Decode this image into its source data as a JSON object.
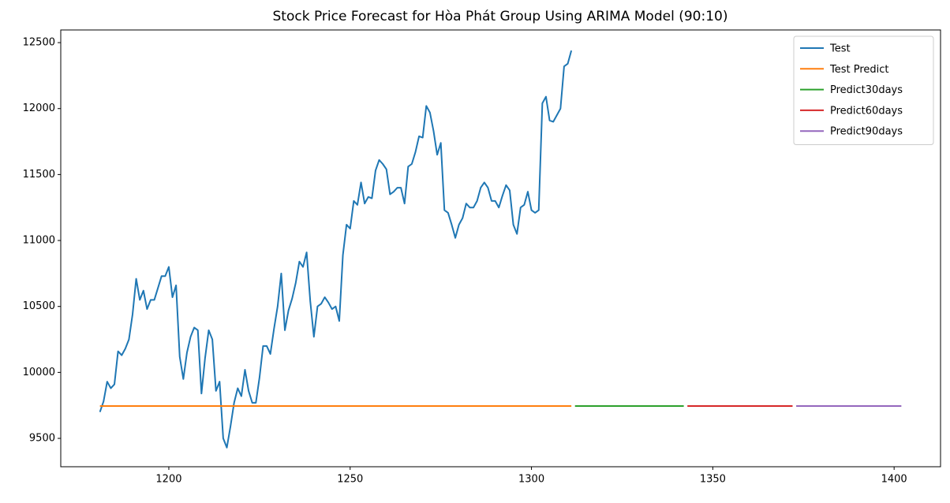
{
  "chart_data": {
    "type": "line",
    "title": "Stock Price Forecast for Hòa Phát Group Using ARIMA Model (90:10)",
    "xlim": [
      1170.2,
      1412.8
    ],
    "ylim": [
      9285,
      12596
    ],
    "xticks": [
      1200,
      1250,
      1300,
      1350,
      1400
    ],
    "yticks": [
      9500,
      10000,
      10500,
      11000,
      11500,
      12000,
      12500
    ],
    "grid": false,
    "legend": "upper right",
    "series": [
      {
        "name": "Test",
        "color": "#1f77b4",
        "x": [
          1181,
          1182,
          1183,
          1184,
          1185,
          1186,
          1187,
          1188,
          1189,
          1190,
          1191,
          1192,
          1193,
          1194,
          1195,
          1196,
          1197,
          1198,
          1199,
          1200,
          1201,
          1202,
          1203,
          1204,
          1205,
          1206,
          1207,
          1208,
          1209,
          1210,
          1211,
          1212,
          1213,
          1214,
          1215,
          1216,
          1217,
          1218,
          1219,
          1220,
          1221,
          1222,
          1223,
          1224,
          1225,
          1226,
          1227,
          1228,
          1229,
          1230,
          1231,
          1232,
          1233,
          1234,
          1235,
          1236,
          1237,
          1238,
          1239,
          1240,
          1241,
          1242,
          1243,
          1244,
          1245,
          1246,
          1247,
          1248,
          1249,
          1250,
          1251,
          1252,
          1253,
          1254,
          1255,
          1256,
          1257,
          1258,
          1259,
          1260,
          1261,
          1262,
          1263,
          1264,
          1265,
          1266,
          1267,
          1268,
          1269,
          1270,
          1271,
          1272,
          1273,
          1274,
          1275,
          1276,
          1277,
          1278,
          1279,
          1280,
          1281,
          1282,
          1283,
          1284,
          1285,
          1286,
          1287,
          1288,
          1289,
          1290,
          1291,
          1292,
          1293,
          1294,
          1295,
          1296,
          1297,
          1298,
          1299,
          1300,
          1301,
          1302,
          1303,
          1304,
          1305,
          1306,
          1307,
          1308,
          1309,
          1310,
          1311
        ],
        "values": [
          9700,
          9780,
          9930,
          9880,
          9910,
          10160,
          10130,
          10180,
          10250,
          10440,
          10710,
          10550,
          10620,
          10480,
          10550,
          10550,
          10640,
          10730,
          10730,
          10800,
          10570,
          10660,
          10120,
          9950,
          10150,
          10270,
          10340,
          10320,
          9840,
          10110,
          10320,
          10250,
          9860,
          9930,
          9500,
          9430,
          9590,
          9770,
          9880,
          9820,
          10020,
          9860,
          9770,
          9770,
          9960,
          10200,
          10200,
          10140,
          10330,
          10500,
          10750,
          10320,
          10470,
          10560,
          10680,
          10840,
          10800,
          10910,
          10540,
          10270,
          10500,
          10520,
          10570,
          10530,
          10480,
          10500,
          10390,
          10890,
          11120,
          11090,
          11300,
          11270,
          11440,
          11280,
          11330,
          11320,
          11530,
          11610,
          11580,
          11540,
          11350,
          11370,
          11400,
          11400,
          11280,
          11560,
          11580,
          11670,
          11790,
          11780,
          12020,
          11970,
          11830,
          11650,
          11740,
          11230,
          11210,
          11120,
          11020,
          11120,
          11170,
          11280,
          11250,
          11250,
          11300,
          11400,
          11440,
          11400,
          11300,
          11300,
          11250,
          11340,
          11420,
          11380,
          11120,
          11050,
          11250,
          11270,
          11370,
          11230,
          11210,
          11230,
          12040,
          12090,
          11910,
          11900,
          11950,
          12000,
          12320,
          12340,
          12440
        ]
      },
      {
        "name": "Test Predict",
        "color": "#ff7f0e",
        "x": [
          1181,
          1311
        ],
        "values": [
          9745,
          9745
        ]
      },
      {
        "name": "Predict30days",
        "color": "#2ca02c",
        "x": [
          1312,
          1342
        ],
        "values": [
          9745,
          9745
        ]
      },
      {
        "name": "Predict60days",
        "color": "#d62728",
        "x": [
          1343,
          1372
        ],
        "values": [
          9745,
          9745
        ]
      },
      {
        "name": "Predict90days",
        "color": "#9467bd",
        "x": [
          1373,
          1402
        ],
        "values": [
          9745,
          9745
        ]
      }
    ]
  }
}
